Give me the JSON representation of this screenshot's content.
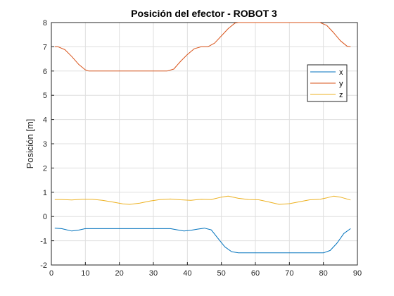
{
  "chart_data": {
    "type": "line",
    "title": "Posición del efector - ROBOT 3",
    "xlabel": "",
    "ylabel": "Posición [m]",
    "xlim": [
      0,
      90
    ],
    "ylim": [
      -2,
      8
    ],
    "xticks": [
      "0",
      "10",
      "20",
      "30",
      "40",
      "50",
      "60",
      "70",
      "80",
      "90"
    ],
    "yticks": [
      "-2",
      "-1",
      "0",
      "1",
      "2",
      "3",
      "4",
      "5",
      "6",
      "7",
      "8"
    ],
    "grid": true,
    "legend_position": "upper-right",
    "series": [
      {
        "name": "x",
        "color": "#0072BD",
        "points": [
          [
            1,
            -0.48
          ],
          [
            3,
            -0.5
          ],
          [
            6,
            -0.6
          ],
          [
            8,
            -0.56
          ],
          [
            10,
            -0.5
          ],
          [
            15,
            -0.5
          ],
          [
            20,
            -0.5
          ],
          [
            25,
            -0.5
          ],
          [
            30,
            -0.5
          ],
          [
            35,
            -0.5
          ],
          [
            37,
            -0.55
          ],
          [
            39,
            -0.6
          ],
          [
            41,
            -0.57
          ],
          [
            43,
            -0.52
          ],
          [
            45,
            -0.48
          ],
          [
            47,
            -0.55
          ],
          [
            49,
            -0.9
          ],
          [
            51,
            -1.25
          ],
          [
            53,
            -1.45
          ],
          [
            55,
            -1.5
          ],
          [
            60,
            -1.5
          ],
          [
            65,
            -1.5
          ],
          [
            70,
            -1.5
          ],
          [
            75,
            -1.5
          ],
          [
            80,
            -1.5
          ],
          [
            82,
            -1.4
          ],
          [
            84,
            -1.1
          ],
          [
            86,
            -0.7
          ],
          [
            88,
            -0.5
          ]
        ]
      },
      {
        "name": "y",
        "color": "#D95319",
        "points": [
          [
            1,
            7
          ],
          [
            2,
            7
          ],
          [
            4,
            6.88
          ],
          [
            6,
            6.6
          ],
          [
            8,
            6.28
          ],
          [
            10,
            6.05
          ],
          [
            11,
            6
          ],
          [
            15,
            6
          ],
          [
            20,
            6
          ],
          [
            25,
            6
          ],
          [
            30,
            6
          ],
          [
            34,
            6
          ],
          [
            36,
            6.08
          ],
          [
            38,
            6.4
          ],
          [
            40,
            6.68
          ],
          [
            42,
            6.92
          ],
          [
            44,
            7
          ],
          [
            46,
            7
          ],
          [
            48,
            7.15
          ],
          [
            50,
            7.45
          ],
          [
            52,
            7.75
          ],
          [
            54,
            7.98
          ],
          [
            55,
            8
          ],
          [
            60,
            8
          ],
          [
            65,
            8
          ],
          [
            70,
            8
          ],
          [
            75,
            8
          ],
          [
            79,
            8
          ],
          [
            81,
            7.88
          ],
          [
            83,
            7.58
          ],
          [
            85,
            7.25
          ],
          [
            87,
            7.02
          ],
          [
            88,
            7
          ]
        ]
      },
      {
        "name": "z",
        "color": "#EDB120",
        "points": [
          [
            1,
            0.7
          ],
          [
            3,
            0.7
          ],
          [
            6,
            0.68
          ],
          [
            9,
            0.71
          ],
          [
            12,
            0.71
          ],
          [
            15,
            0.67
          ],
          [
            18,
            0.6
          ],
          [
            21,
            0.52
          ],
          [
            23,
            0.5
          ],
          [
            26,
            0.55
          ],
          [
            29,
            0.64
          ],
          [
            32,
            0.7
          ],
          [
            35,
            0.72
          ],
          [
            38,
            0.69
          ],
          [
            41,
            0.67
          ],
          [
            44,
            0.71
          ],
          [
            47,
            0.7
          ],
          [
            50,
            0.8
          ],
          [
            52,
            0.84
          ],
          [
            55,
            0.75
          ],
          [
            58,
            0.7
          ],
          [
            61,
            0.69
          ],
          [
            64,
            0.6
          ],
          [
            67,
            0.5
          ],
          [
            70,
            0.53
          ],
          [
            73,
            0.61
          ],
          [
            76,
            0.69
          ],
          [
            79,
            0.71
          ],
          [
            81,
            0.77
          ],
          [
            83,
            0.84
          ],
          [
            85,
            0.8
          ],
          [
            88,
            0.68
          ]
        ]
      }
    ]
  }
}
